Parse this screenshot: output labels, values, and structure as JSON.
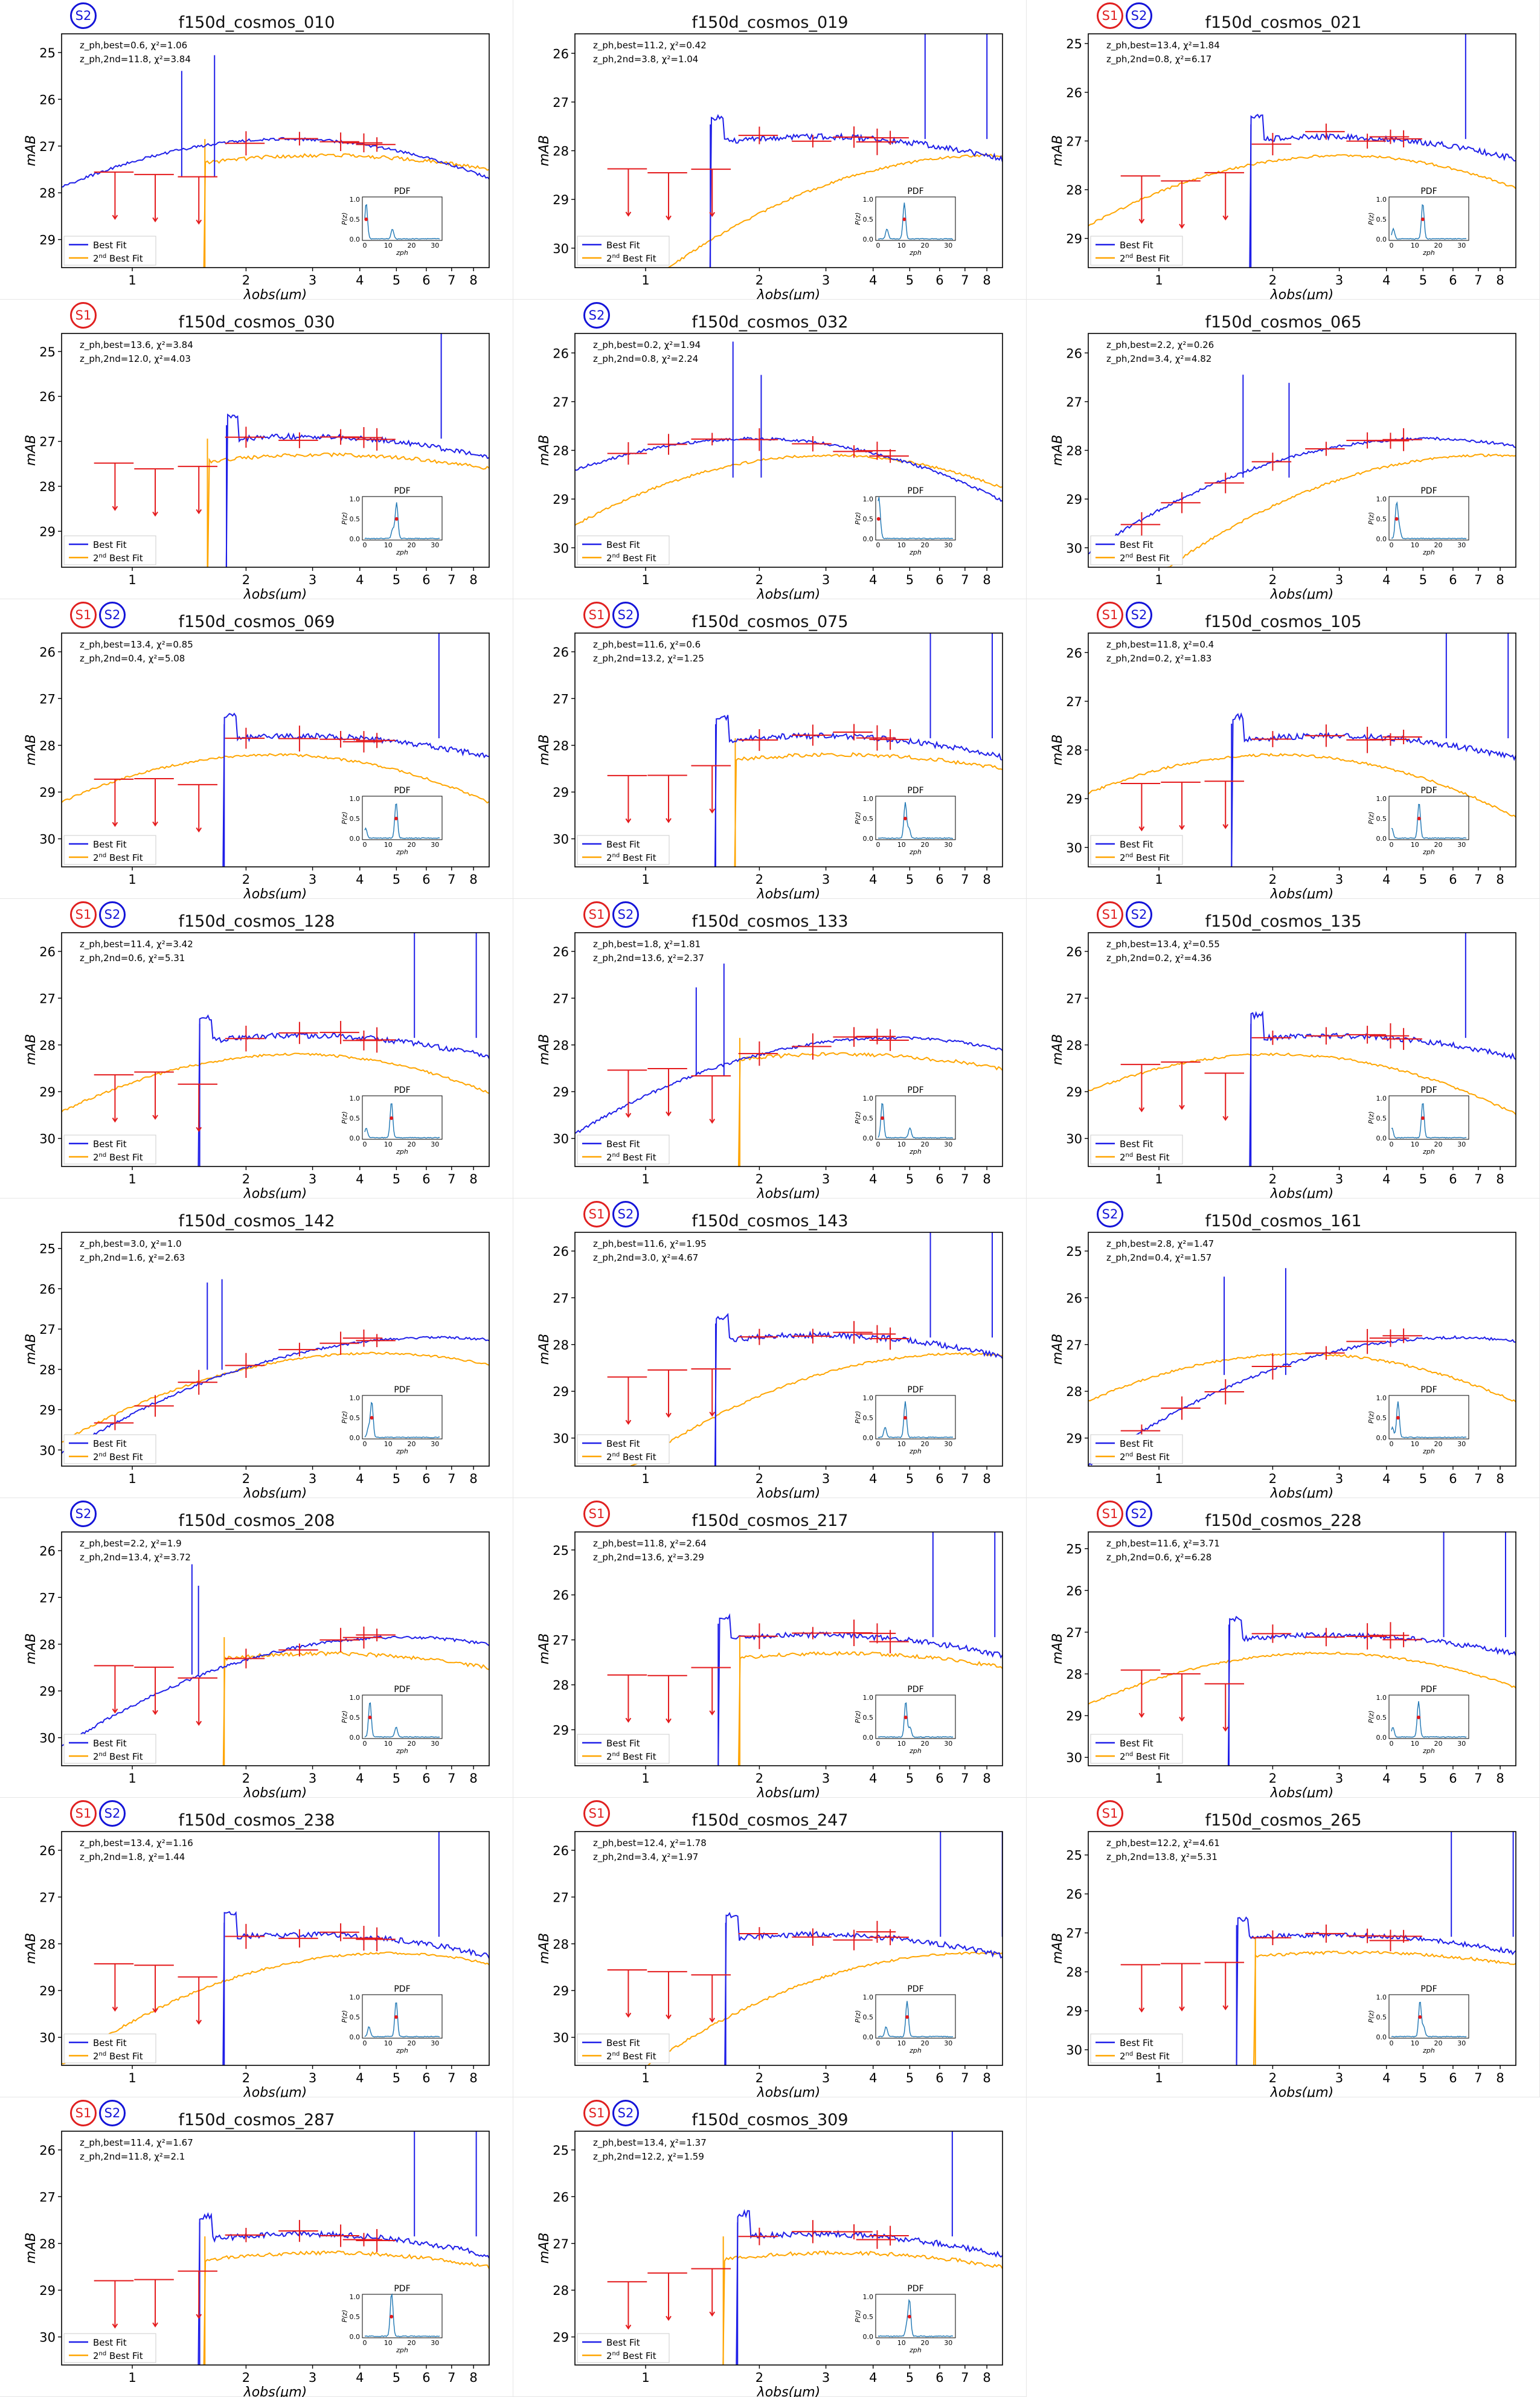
{
  "figure": {
    "xlabel": "λobs(μm)",
    "ylabel": "mAB",
    "legend": {
      "best": "Best Fit",
      "second_prefix": "2",
      "second_sup": "nd",
      "second_suffix": " Best Fit"
    },
    "inset": {
      "title": "PDF",
      "ylabel": "P(z)",
      "xlabel": "zph",
      "yticks": [
        "0.0",
        "0.5",
        "1.0"
      ],
      "xticks": [
        "0",
        "10",
        "20",
        "30"
      ]
    },
    "xticks": [
      "1",
      "2",
      "3",
      "4",
      "5",
      "6",
      "7",
      "8"
    ],
    "colors": {
      "best": "#1f1fe8",
      "second": "#ffa500",
      "phot": "#e41a1c",
      "pdf": "#1f77b4"
    }
  },
  "chart_data": [
    {
      "type": "line",
      "title": "f150d_cosmos_010",
      "badges": [
        "S2"
      ],
      "z_best": "0.6",
      "chi2_best": "1.06",
      "z_2nd": "11.8",
      "chi2_2nd": "3.84",
      "ylim": [
        29.6,
        24.6
      ],
      "yticks": [
        25,
        26,
        27,
        28,
        29
      ]
    },
    {
      "type": "line",
      "title": "f150d_cosmos_019",
      "badges": [],
      "z_best": "11.2",
      "chi2_best": "0.42",
      "z_2nd": "3.8",
      "chi2_2nd": "1.04",
      "ylim": [
        30.4,
        25.6
      ],
      "yticks": [
        26,
        27,
        28,
        29,
        30
      ]
    },
    {
      "type": "line",
      "title": "f150d_cosmos_021",
      "badges": [
        "S1",
        "S2"
      ],
      "z_best": "13.4",
      "chi2_best": "1.84",
      "z_2nd": "0.8",
      "chi2_2nd": "6.17",
      "ylim": [
        29.6,
        24.8
      ],
      "yticks": [
        25,
        26,
        27,
        28,
        29
      ]
    },
    {
      "type": "line",
      "title": "f150d_cosmos_030",
      "badges": [
        "S1"
      ],
      "z_best": "13.6",
      "chi2_best": "3.84",
      "z_2nd": "12.0",
      "chi2_2nd": "4.03",
      "ylim": [
        29.8,
        24.6
      ],
      "yticks": [
        25,
        26,
        27,
        28,
        29
      ]
    },
    {
      "type": "line",
      "title": "f150d_cosmos_032",
      "badges": [
        "S2"
      ],
      "z_best": "0.2",
      "chi2_best": "1.94",
      "z_2nd": "0.8",
      "chi2_2nd": "2.24",
      "ylim": [
        30.4,
        25.6
      ],
      "yticks": [
        26,
        27,
        28,
        29,
        30
      ]
    },
    {
      "type": "line",
      "title": "f150d_cosmos_065",
      "badges": [],
      "z_best": "2.2",
      "chi2_best": "0.26",
      "z_2nd": "3.4",
      "chi2_2nd": "4.82",
      "ylim": [
        30.4,
        25.6
      ],
      "yticks": [
        26,
        27,
        28,
        29,
        30
      ]
    },
    {
      "type": "line",
      "title": "f150d_cosmos_069",
      "badges": [
        "S1",
        "S2"
      ],
      "z_best": "13.4",
      "chi2_best": "0.85",
      "z_2nd": "0.4",
      "chi2_2nd": "5.08",
      "ylim": [
        30.6,
        25.6
      ],
      "yticks": [
        26,
        27,
        28,
        29,
        30
      ]
    },
    {
      "type": "line",
      "title": "f150d_cosmos_075",
      "badges": [
        "S1",
        "S2"
      ],
      "z_best": "11.6",
      "chi2_best": "0.6",
      "z_2nd": "13.2",
      "chi2_2nd": "1.25",
      "ylim": [
        30.6,
        25.6
      ],
      "yticks": [
        26,
        27,
        28,
        29,
        30
      ]
    },
    {
      "type": "line",
      "title": "f150d_cosmos_105",
      "badges": [
        "S1",
        "S2"
      ],
      "z_best": "11.8",
      "chi2_best": "0.4",
      "z_2nd": "0.2",
      "chi2_2nd": "1.83",
      "ylim": [
        30.4,
        25.6
      ],
      "yticks": [
        26,
        27,
        28,
        29,
        30
      ]
    },
    {
      "type": "line",
      "title": "f150d_cosmos_128",
      "badges": [
        "S1",
        "S2"
      ],
      "z_best": "11.4",
      "chi2_best": "3.42",
      "z_2nd": "0.6",
      "chi2_2nd": "5.31",
      "ylim": [
        30.6,
        25.6
      ],
      "yticks": [
        26,
        27,
        28,
        29,
        30
      ]
    },
    {
      "type": "line",
      "title": "f150d_cosmos_133",
      "badges": [
        "S1",
        "S2"
      ],
      "z_best": "1.8",
      "chi2_best": "1.81",
      "z_2nd": "13.6",
      "chi2_2nd": "2.37",
      "ylim": [
        30.6,
        25.6
      ],
      "yticks": [
        26,
        27,
        28,
        29,
        30
      ]
    },
    {
      "type": "line",
      "title": "f150d_cosmos_135",
      "badges": [
        "S1",
        "S2"
      ],
      "z_best": "13.4",
      "chi2_best": "0.55",
      "z_2nd": "0.2",
      "chi2_2nd": "4.36",
      "ylim": [
        30.6,
        25.6
      ],
      "yticks": [
        26,
        27,
        28,
        29,
        30
      ]
    },
    {
      "type": "line",
      "title": "f150d_cosmos_142",
      "badges": [],
      "z_best": "3.0",
      "chi2_best": "1.0",
      "z_2nd": "1.6",
      "chi2_2nd": "2.63",
      "ylim": [
        30.4,
        24.6
      ],
      "yticks": [
        25,
        26,
        27,
        28,
        29,
        30
      ]
    },
    {
      "type": "line",
      "title": "f150d_cosmos_143",
      "badges": [
        "S1",
        "S2"
      ],
      "z_best": "11.6",
      "chi2_best": "1.95",
      "z_2nd": "3.0",
      "chi2_2nd": "4.67",
      "ylim": [
        30.6,
        25.6
      ],
      "yticks": [
        26,
        27,
        28,
        29,
        30
      ]
    },
    {
      "type": "line",
      "title": "f150d_cosmos_161",
      "badges": [
        "S2"
      ],
      "z_best": "2.8",
      "chi2_best": "1.47",
      "z_2nd": "0.4",
      "chi2_2nd": "1.57",
      "ylim": [
        29.6,
        24.6
      ],
      "yticks": [
        25,
        26,
        27,
        28,
        29
      ]
    },
    {
      "type": "line",
      "title": "f150d_cosmos_208",
      "badges": [
        "S2"
      ],
      "z_best": "2.2",
      "chi2_best": "1.9",
      "z_2nd": "13.4",
      "chi2_2nd": "3.72",
      "ylim": [
        30.6,
        25.6
      ],
      "yticks": [
        26,
        27,
        28,
        29,
        30
      ]
    },
    {
      "type": "line",
      "title": "f150d_cosmos_217",
      "badges": [
        "S1"
      ],
      "z_best": "11.8",
      "chi2_best": "2.64",
      "z_2nd": "13.6",
      "chi2_2nd": "3.29",
      "ylim": [
        29.8,
        24.6
      ],
      "yticks": [
        25,
        26,
        27,
        28,
        29
      ]
    },
    {
      "type": "line",
      "title": "f150d_cosmos_228",
      "badges": [
        "S1",
        "S2"
      ],
      "z_best": "11.6",
      "chi2_best": "3.71",
      "z_2nd": "0.6",
      "chi2_2nd": "6.28",
      "ylim": [
        30.2,
        24.6
      ],
      "yticks": [
        25,
        26,
        27,
        28,
        29,
        30
      ]
    },
    {
      "type": "line",
      "title": "f150d_cosmos_238",
      "badges": [
        "S1",
        "S2"
      ],
      "z_best": "13.4",
      "chi2_best": "1.16",
      "z_2nd": "1.8",
      "chi2_2nd": "1.44",
      "ylim": [
        30.6,
        25.6
      ],
      "yticks": [
        26,
        27,
        28,
        29,
        30
      ]
    },
    {
      "type": "line",
      "title": "f150d_cosmos_247",
      "badges": [
        "S1"
      ],
      "z_best": "12.4",
      "chi2_best": "1.78",
      "z_2nd": "3.4",
      "chi2_2nd": "1.97",
      "ylim": [
        30.6,
        25.6
      ],
      "yticks": [
        26,
        27,
        28,
        29,
        30
      ]
    },
    {
      "type": "line",
      "title": "f150d_cosmos_265",
      "badges": [
        "S1"
      ],
      "z_best": "12.2",
      "chi2_best": "4.61",
      "z_2nd": "13.8",
      "chi2_2nd": "5.31",
      "ylim": [
        30.4,
        24.4
      ],
      "yticks": [
        25,
        26,
        27,
        28,
        29,
        30
      ]
    },
    {
      "type": "line",
      "title": "f150d_cosmos_287",
      "badges": [
        "S1",
        "S2"
      ],
      "z_best": "11.4",
      "chi2_best": "1.67",
      "z_2nd": "11.8",
      "chi2_2nd": "2.1",
      "ylim": [
        30.6,
        25.6
      ],
      "yticks": [
        26,
        27,
        28,
        29,
        30
      ]
    },
    {
      "type": "line",
      "title": "f150d_cosmos_309",
      "badges": [
        "S1",
        "S2"
      ],
      "z_best": "13.4",
      "chi2_best": "1.37",
      "z_2nd": "12.2",
      "chi2_2nd": "1.59",
      "ylim": [
        29.6,
        24.6
      ],
      "yticks": [
        25,
        26,
        27,
        28,
        29
      ]
    }
  ]
}
